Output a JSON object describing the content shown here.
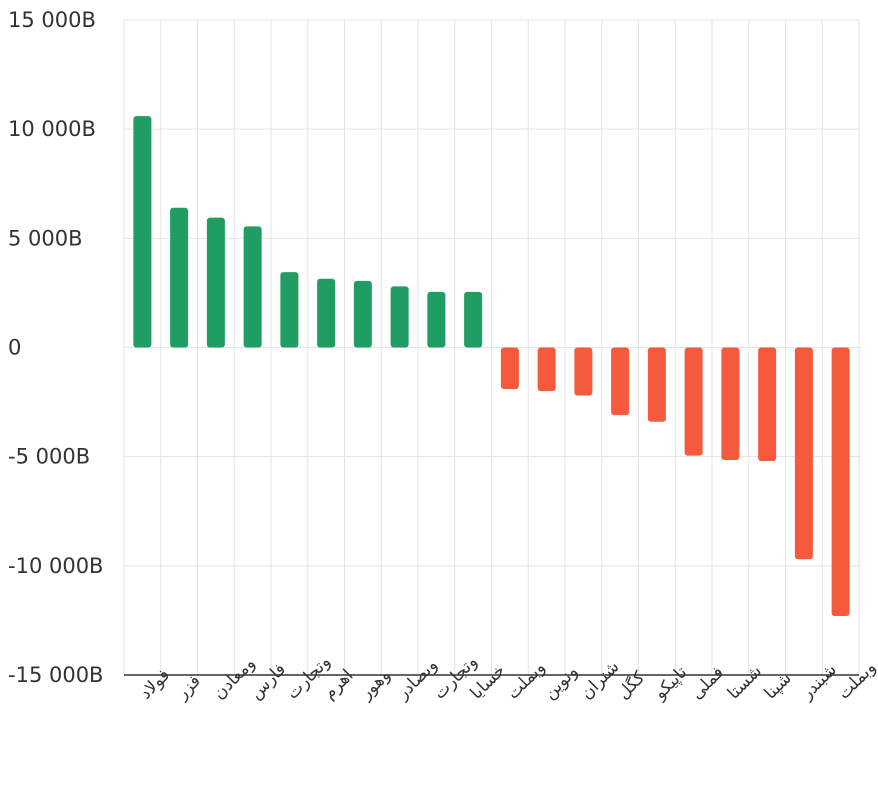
{
  "chart_data": {
    "type": "bar",
    "categories": [
      "فولاد",
      "فزر",
      "ومعادن",
      "فارس",
      "وتجارت",
      "اهرم",
      "وهور",
      "وبصادر",
      "وتجارت",
      "خسایا",
      "وبملت",
      "ونوین",
      "شتران",
      "کگل",
      "تاپیکو",
      "فملی",
      "شستا",
      "شپنا",
      "شبندر",
      "وبملت"
    ],
    "values": [
      10600,
      6400,
      5950,
      5550,
      3450,
      3150,
      3050,
      2800,
      2550,
      2550,
      -1900,
      -2000,
      -2200,
      -3100,
      -3400,
      -4950,
      -5150,
      -5200,
      -9700,
      -12300
    ],
    "y_ticks": [
      15000,
      10000,
      5000,
      0,
      -5000,
      -10000,
      -15000
    ],
    "y_tick_labels": [
      "15 000B",
      "10 000B",
      "5 000B",
      "0",
      "-5 000B",
      "-10 000B",
      "-15 000B"
    ],
    "ylim": [
      -15000,
      15000
    ],
    "grid": true,
    "colors": {
      "positive": "#1f9d63",
      "negative": "#f55a3c"
    }
  }
}
